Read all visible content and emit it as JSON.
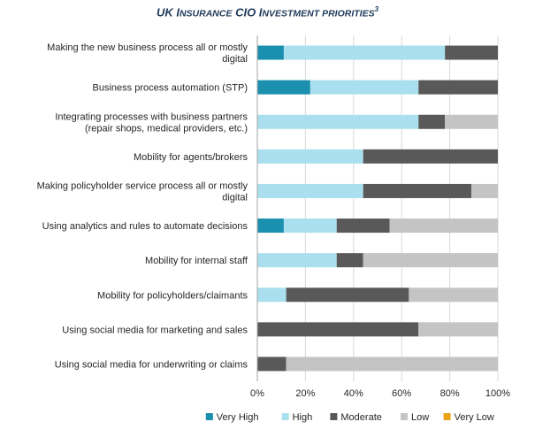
{
  "chart_data": {
    "type": "bar",
    "orientation": "horizontal",
    "stacked": "percent",
    "title": "UK Insurance CIO Investment priorities",
    "title_superscript": "3",
    "categories": [
      "Making the new business process all or mostly digital",
      "Business process automation (STP)",
      "Integrating processes with business partners (repair shops, medical providers, etc.)",
      "Mobility for agents/brokers",
      "Making policyholder service process all or mostly digital",
      "Using analytics and rules to automate decisions",
      "Mobility for internal staff",
      "Mobility for policyholders/claimants",
      "Using social media for marketing and sales",
      "Using social media for underwriting or claims"
    ],
    "category_lines": [
      [
        "Making the new business process all or mostly",
        "digital"
      ],
      [
        "Business process automation (STP)"
      ],
      [
        "Integrating processes with business partners",
        "(repair shops, medical providers, etc.)"
      ],
      [
        "Mobility for agents/brokers"
      ],
      [
        "Making policyholder service process all or mostly",
        "digital"
      ],
      [
        "Using analytics and rules to automate decisions"
      ],
      [
        "Mobility for internal staff"
      ],
      [
        "Mobility for policyholders/claimants"
      ],
      [
        "Using social media for marketing and sales"
      ],
      [
        "Using social media for underwriting or claims"
      ]
    ],
    "series": [
      {
        "name": "Very High",
        "color": "#1a8fae",
        "values": [
          11,
          22,
          0,
          0,
          0,
          11,
          0,
          0,
          0,
          0
        ]
      },
      {
        "name": "High",
        "color": "#a9dfee",
        "values": [
          67,
          45,
          67,
          44,
          44,
          22,
          33,
          12,
          0,
          0
        ]
      },
      {
        "name": "Moderate",
        "color": "#595959",
        "values": [
          22,
          33,
          11,
          56,
          45,
          22,
          11,
          51,
          67,
          12
        ]
      },
      {
        "name": "Low",
        "color": "#c4c4c4",
        "values": [
          0,
          0,
          22,
          0,
          11,
          45,
          56,
          37,
          33,
          88
        ]
      },
      {
        "name": "Very Low",
        "color": "#e8a317",
        "values": [
          0,
          0,
          0,
          0,
          0,
          0,
          0,
          0,
          0,
          0
        ]
      }
    ],
    "xlim": [
      0,
      100
    ],
    "x_ticks": [
      "0%",
      "20%",
      "40%",
      "60%",
      "80%",
      "100%"
    ],
    "grid": true,
    "legend_position": "bottom"
  }
}
